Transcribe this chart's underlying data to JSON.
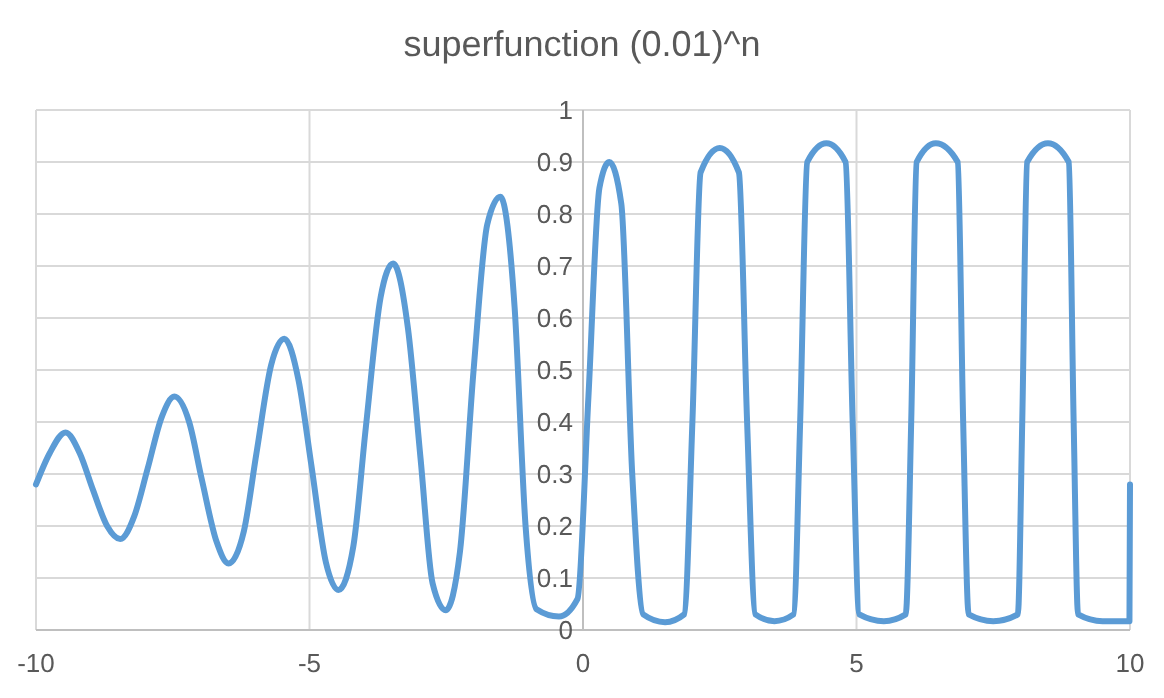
{
  "chart_data": {
    "type": "line",
    "title": "superfunction (0.01)^n",
    "xlim": [
      -10,
      10
    ],
    "xticks": [
      -10,
      -5,
      0,
      5,
      10
    ],
    "ylim": [
      0,
      1
    ],
    "yticks": [
      0,
      0.1,
      0.2,
      0.3,
      0.4,
      0.5,
      0.6,
      0.7,
      0.8,
      0.9,
      1
    ],
    "grid": true,
    "marker": "none",
    "line_style": "solid",
    "series": [
      {
        "color": "#5b9bd5",
        "x": [
          -10,
          -9.75,
          -9.46,
          -9.2,
          -8.96,
          -8.7,
          -8.46,
          -8.2,
          -7.96,
          -7.7,
          -7.47,
          -7.2,
          -6.97,
          -6.7,
          -6.48,
          -6.2,
          -5.97,
          -5.7,
          -5.46,
          -5.2,
          -4.97,
          -4.7,
          -4.47,
          -4.2,
          -3.97,
          -3.7,
          -3.47,
          -3.2,
          -2.97,
          -2.75,
          -2.51,
          -2.25,
          -2.0,
          -1.75,
          -1.51,
          -1.25,
          -1.05,
          -0.85,
          -0.44,
          -0.1,
          0.1,
          0.3,
          0.48,
          0.7,
          0.9,
          1.1,
          1.5,
          1.85,
          2.0,
          2.15,
          2.5,
          2.85,
          3.0,
          3.15,
          3.5,
          3.85,
          3.97,
          4.1,
          4.45,
          4.8,
          4.93,
          5.05,
          5.5,
          5.9,
          6.0,
          6.1,
          6.45,
          6.85,
          6.95,
          7.05,
          7.5,
          7.95,
          8.03,
          8.12,
          8.5,
          8.88,
          8.97,
          9.05,
          9.5,
          9.99,
          10
        ],
        "values": [
          0.28,
          0.34,
          0.38,
          0.34,
          0.27,
          0.2,
          0.175,
          0.22,
          0.31,
          0.41,
          0.449,
          0.4,
          0.29,
          0.17,
          0.128,
          0.19,
          0.34,
          0.51,
          0.56,
          0.48,
          0.32,
          0.13,
          0.077,
          0.16,
          0.39,
          0.64,
          0.705,
          0.58,
          0.33,
          0.09,
          0.038,
          0.15,
          0.5,
          0.78,
          0.833,
          0.62,
          0.2,
          0.04,
          0.026,
          0.06,
          0.45,
          0.85,
          0.9,
          0.82,
          0.3,
          0.03,
          0.015,
          0.03,
          0.4,
          0.88,
          0.927,
          0.88,
          0.4,
          0.03,
          0.017,
          0.03,
          0.4,
          0.9,
          0.936,
          0.9,
          0.4,
          0.03,
          0.017,
          0.03,
          0.4,
          0.9,
          0.936,
          0.9,
          0.4,
          0.03,
          0.017,
          0.03,
          0.4,
          0.9,
          0.936,
          0.9,
          0.4,
          0.03,
          0.017,
          0.017,
          0.28
        ]
      }
    ]
  }
}
